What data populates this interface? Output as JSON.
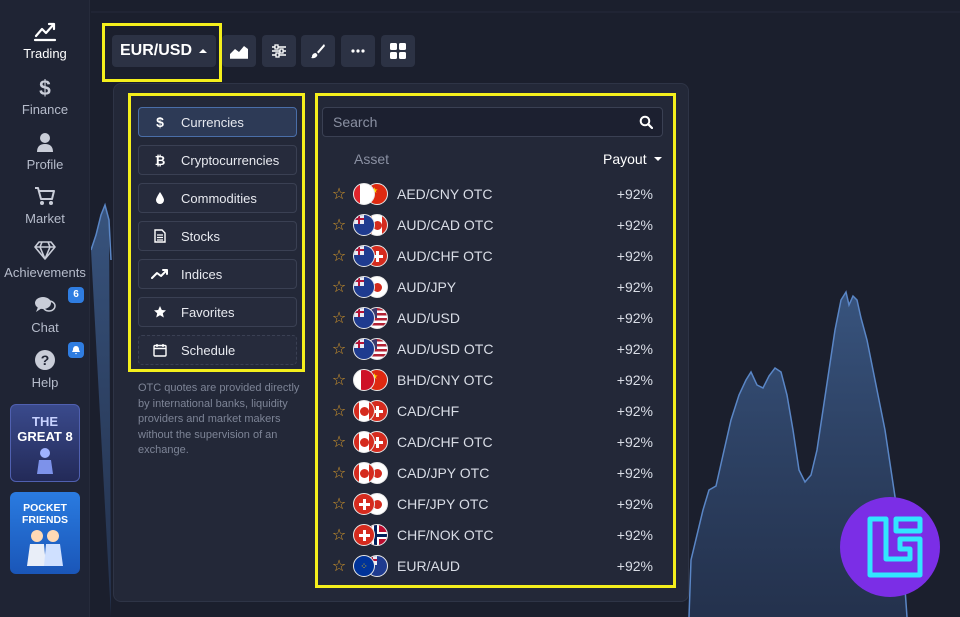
{
  "sidebar": {
    "items": [
      {
        "label": "Trading",
        "icon": "chart-line-icon",
        "active": true
      },
      {
        "label": "Finance",
        "icon": "dollar-icon"
      },
      {
        "label": "Profile",
        "icon": "user-icon"
      },
      {
        "label": "Market",
        "icon": "cart-icon"
      },
      {
        "label": "Achievements",
        "icon": "diamond-icon"
      },
      {
        "label": "Chat",
        "icon": "chat-icon",
        "badge": "6"
      },
      {
        "label": "Help",
        "icon": "question-icon"
      }
    ],
    "promo1": {
      "line1": "THE",
      "line2": "GREAT 8"
    },
    "promo2": {
      "line1": "POCKET",
      "line2": "FRIENDS"
    }
  },
  "toolbar": {
    "pair": "EUR/USD",
    "buttons": [
      "area-chart-icon",
      "settings-sliders-icon",
      "brush-icon",
      "more-icon",
      "grid-icon"
    ]
  },
  "categories": [
    {
      "label": "Currencies",
      "icon": "dollar-icon",
      "active": true
    },
    {
      "label": "Cryptocurrencies",
      "icon": "bitcoin-icon"
    },
    {
      "label": "Commodities",
      "icon": "drop-icon"
    },
    {
      "label": "Stocks",
      "icon": "document-icon"
    },
    {
      "label": "Indices",
      "icon": "trend-icon"
    },
    {
      "label": "Favorites",
      "icon": "star-icon"
    },
    {
      "label": "Schedule",
      "icon": "calendar-icon"
    }
  ],
  "note": "OTC quotes are provided directly by international banks, liquidity providers and market makers without the supervision of an exchange.",
  "search": {
    "placeholder": "Search"
  },
  "columns": {
    "asset": "Asset",
    "payout": "Payout"
  },
  "assets": [
    {
      "name": "AED/CNY OTC",
      "payout": "+92%",
      "flags": [
        "ae",
        "cn"
      ]
    },
    {
      "name": "AUD/CAD OTC",
      "payout": "+92%",
      "flags": [
        "au",
        "ca"
      ]
    },
    {
      "name": "AUD/CHF OTC",
      "payout": "+92%",
      "flags": [
        "au",
        "ch"
      ]
    },
    {
      "name": "AUD/JPY",
      "payout": "+92%",
      "flags": [
        "au",
        "jp"
      ]
    },
    {
      "name": "AUD/USD",
      "payout": "+92%",
      "flags": [
        "au",
        "us"
      ]
    },
    {
      "name": "AUD/USD OTC",
      "payout": "+92%",
      "flags": [
        "au",
        "us"
      ]
    },
    {
      "name": "BHD/CNY OTC",
      "payout": "+92%",
      "flags": [
        "bh",
        "cn"
      ]
    },
    {
      "name": "CAD/CHF",
      "payout": "+92%",
      "flags": [
        "ca",
        "ch"
      ]
    },
    {
      "name": "CAD/CHF OTC",
      "payout": "+92%",
      "flags": [
        "ca",
        "ch"
      ]
    },
    {
      "name": "CAD/JPY OTC",
      "payout": "+92%",
      "flags": [
        "ca",
        "jp"
      ]
    },
    {
      "name": "CHF/JPY OTC",
      "payout": "+92%",
      "flags": [
        "ch",
        "jp"
      ]
    },
    {
      "name": "CHF/NOK OTC",
      "payout": "+92%",
      "flags": [
        "ch",
        "no"
      ]
    },
    {
      "name": "EUR/AUD",
      "payout": "+92%",
      "flags": [
        "eu",
        "au"
      ]
    }
  ],
  "colors": {
    "highlight": "#f4ef1c",
    "accent": "#2f7de1",
    "star": "#d99a2b",
    "logo": "#7b2ee6"
  }
}
